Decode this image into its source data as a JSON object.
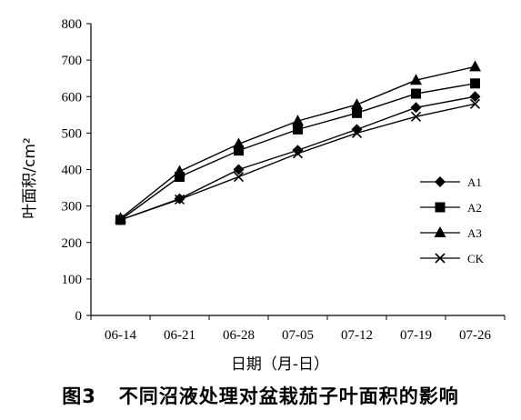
{
  "caption": "图3   不同沼液处理对盆栽茄子叶面积的影响",
  "chart_data": {
    "type": "line",
    "title": "",
    "xlabel": "日期（月-日）",
    "ylabel": "叶面积/cm²",
    "categories": [
      "06-14",
      "06-21",
      "06-28",
      "07-05",
      "07-12",
      "07-19",
      "07-26"
    ],
    "y_ticks": [
      "0",
      "100",
      "200",
      "300",
      "400",
      "500",
      "600",
      "700",
      "800"
    ],
    "ylim": [
      0,
      800
    ],
    "grid": false,
    "legend_position": "right",
    "series": [
      {
        "name": "A1",
        "marker": "diamond",
        "values": [
          262,
          320,
          400,
          453,
          510,
          570,
          600
        ]
      },
      {
        "name": "A2",
        "marker": "square",
        "values": [
          262,
          380,
          452,
          510,
          555,
          608,
          636
        ]
      },
      {
        "name": "A3",
        "marker": "triangle",
        "values": [
          266,
          395,
          470,
          533,
          578,
          645,
          682
        ]
      },
      {
        "name": "CK",
        "marker": "x",
        "values": [
          262,
          318,
          380,
          444,
          500,
          545,
          580
        ]
      }
    ]
  }
}
